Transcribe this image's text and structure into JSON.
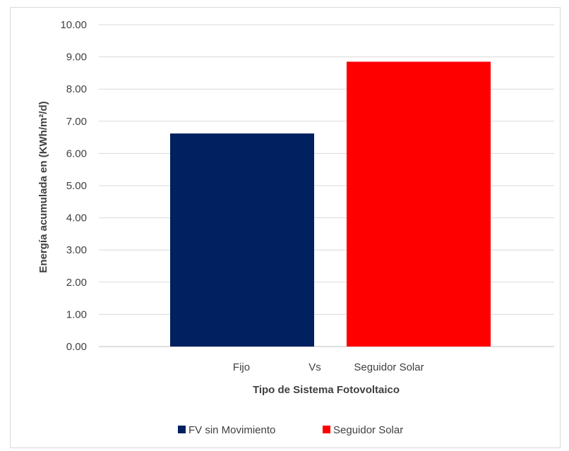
{
  "chart_data": {
    "type": "bar",
    "categories": [
      "Fijo",
      "Seguidor Solar"
    ],
    "separator_label": "Vs",
    "series": [
      {
        "name": "FV sin Movimiento",
        "values": [
          6.62,
          null
        ],
        "color": "#002060"
      },
      {
        "name": "Seguidor Solar",
        "values": [
          null,
          8.85
        ],
        "color": "#ff0000"
      }
    ],
    "xlabel": "Tipo de Sistema Fotovoltaico",
    "ylabel": "Energía acumulada en (KWh/m²/d)",
    "ylim": [
      0,
      10
    ],
    "yticks": [
      "0.00",
      "1.00",
      "2.00",
      "3.00",
      "4.00",
      "5.00",
      "6.00",
      "7.00",
      "8.00",
      "9.00",
      "10.00"
    ],
    "grid": true,
    "legend_position": "bottom"
  }
}
